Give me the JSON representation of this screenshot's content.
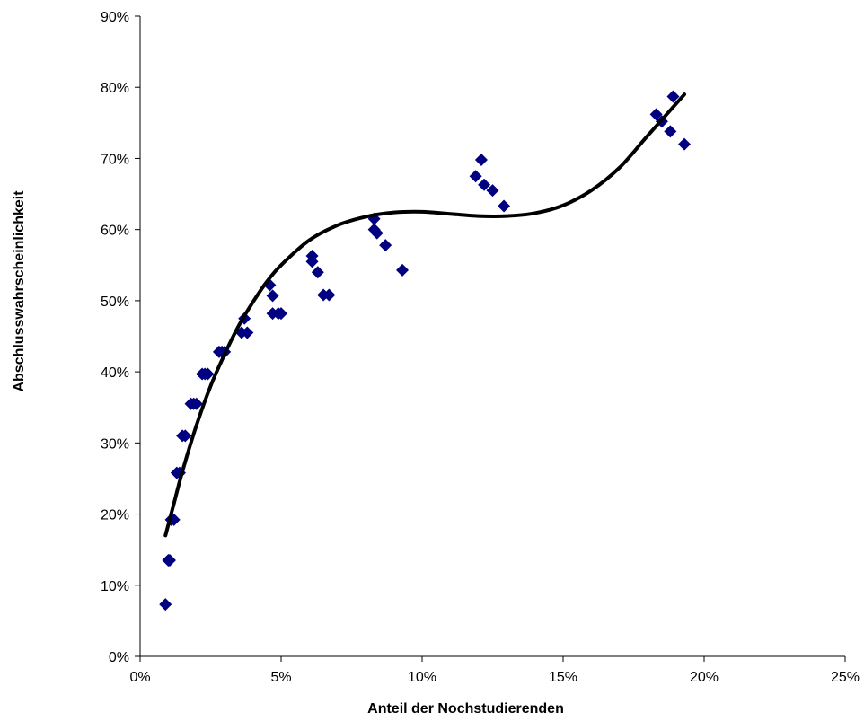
{
  "chart_data": {
    "type": "scatter",
    "title": "",
    "xlabel": "Anteil der Nochstudierenden",
    "ylabel": "Abschlusswahrscheinlichkeit",
    "xlim": [
      0,
      0.25
    ],
    "ylim": [
      0,
      0.9
    ],
    "x_ticks": [
      0,
      0.05,
      0.1,
      0.15,
      0.2,
      0.25
    ],
    "x_tick_labels": [
      "0%",
      "5%",
      "10%",
      "15%",
      "20%",
      "25%"
    ],
    "y_ticks": [
      0,
      0.1,
      0.2,
      0.3,
      0.4,
      0.5,
      0.6,
      0.7,
      0.8,
      0.9
    ],
    "y_tick_labels": [
      "0%",
      "10%",
      "20%",
      "30%",
      "40%",
      "50%",
      "60%",
      "70%",
      "80%",
      "90%"
    ],
    "grid": false,
    "legend": "none",
    "marker_color": "#000080",
    "trend_color": "#000000",
    "trendline": {
      "kind": "polynomial",
      "x_range": [
        0.009,
        0.193
      ],
      "points": [
        [
          0.009,
          0.17
        ],
        [
          0.012,
          0.215
        ],
        [
          0.015,
          0.26
        ],
        [
          0.02,
          0.325
        ],
        [
          0.025,
          0.38
        ],
        [
          0.03,
          0.425
        ],
        [
          0.035,
          0.465
        ],
        [
          0.04,
          0.498
        ],
        [
          0.045,
          0.527
        ],
        [
          0.05,
          0.55
        ],
        [
          0.06,
          0.585
        ],
        [
          0.07,
          0.606
        ],
        [
          0.08,
          0.618
        ],
        [
          0.09,
          0.624
        ],
        [
          0.1,
          0.625
        ],
        [
          0.11,
          0.622
        ],
        [
          0.12,
          0.619
        ],
        [
          0.13,
          0.619
        ],
        [
          0.14,
          0.623
        ],
        [
          0.15,
          0.634
        ],
        [
          0.16,
          0.655
        ],
        [
          0.17,
          0.687
        ],
        [
          0.18,
          0.732
        ],
        [
          0.193,
          0.79
        ]
      ]
    },
    "series": [
      {
        "points": [
          [
            0.009,
            0.073
          ],
          [
            0.01,
            0.135
          ],
          [
            0.0105,
            0.135
          ],
          [
            0.011,
            0.192
          ],
          [
            0.012,
            0.192
          ],
          [
            0.013,
            0.258
          ],
          [
            0.014,
            0.258
          ],
          [
            0.015,
            0.31
          ],
          [
            0.016,
            0.31
          ],
          [
            0.018,
            0.355
          ],
          [
            0.019,
            0.355
          ],
          [
            0.02,
            0.355
          ],
          [
            0.022,
            0.397
          ],
          [
            0.023,
            0.397
          ],
          [
            0.024,
            0.397
          ],
          [
            0.028,
            0.428
          ],
          [
            0.029,
            0.428
          ],
          [
            0.03,
            0.428
          ],
          [
            0.036,
            0.455
          ],
          [
            0.037,
            0.475
          ],
          [
            0.038,
            0.455
          ],
          [
            0.046,
            0.522
          ],
          [
            0.047,
            0.507
          ],
          [
            0.047,
            0.482
          ],
          [
            0.049,
            0.482
          ],
          [
            0.05,
            0.482
          ],
          [
            0.061,
            0.563
          ],
          [
            0.061,
            0.555
          ],
          [
            0.063,
            0.54
          ],
          [
            0.065,
            0.508
          ],
          [
            0.067,
            0.508
          ],
          [
            0.083,
            0.615
          ],
          [
            0.083,
            0.6
          ],
          [
            0.084,
            0.595
          ],
          [
            0.087,
            0.578
          ],
          [
            0.093,
            0.543
          ],
          [
            0.119,
            0.675
          ],
          [
            0.121,
            0.698
          ],
          [
            0.122,
            0.663
          ],
          [
            0.125,
            0.655
          ],
          [
            0.129,
            0.633
          ],
          [
            0.183,
            0.762
          ],
          [
            0.185,
            0.752
          ],
          [
            0.188,
            0.738
          ],
          [
            0.189,
            0.787
          ],
          [
            0.193,
            0.72
          ]
        ]
      }
    ]
  }
}
